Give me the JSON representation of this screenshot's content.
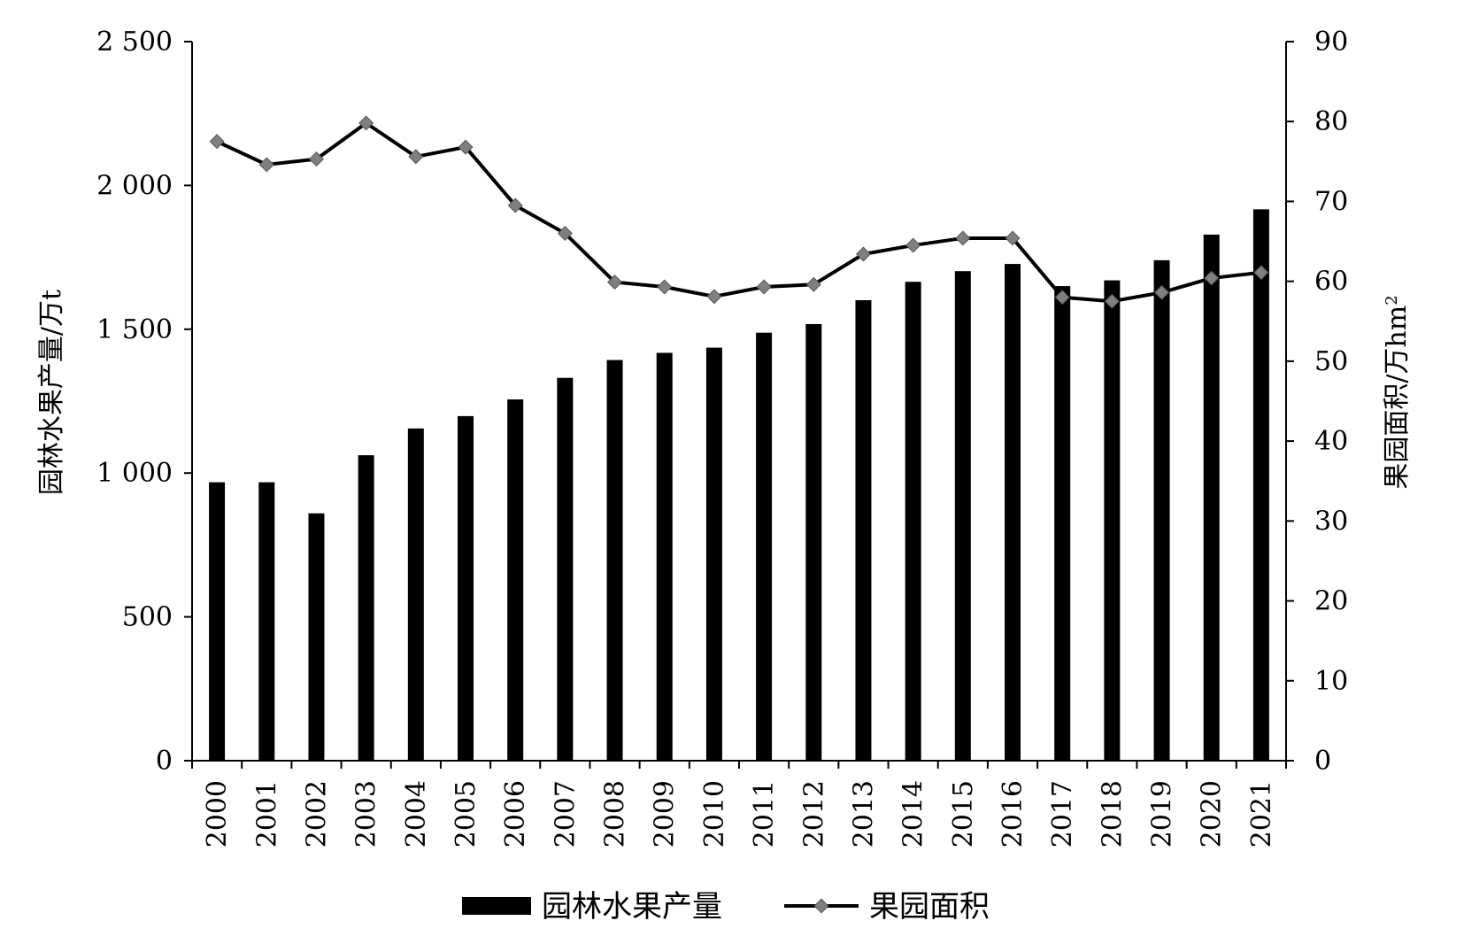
{
  "chart_data": {
    "type": "bar",
    "categories": [
      "2000",
      "2001",
      "2002",
      "2003",
      "2004",
      "2005",
      "2006",
      "2007",
      "2008",
      "2009",
      "2010",
      "2011",
      "2012",
      "2013",
      "2014",
      "2015",
      "2016",
      "2017",
      "2018",
      "2019",
      "2020",
      "2021"
    ],
    "series": [
      {
        "name": "园林水果产量",
        "type": "bar",
        "axis": "left",
        "color": "#000000",
        "values": [
          968,
          968,
          860,
          1062,
          1155,
          1198,
          1256,
          1331,
          1393,
          1418,
          1436,
          1488,
          1518,
          1601,
          1665,
          1702,
          1727,
          1650,
          1670,
          1740,
          1829,
          1917
        ]
      },
      {
        "name": "果园面积",
        "type": "line",
        "axis": "right",
        "color": "#000000",
        "marker": "diamond",
        "marker_color": "#7f7f7f",
        "values": [
          77.5,
          74.6,
          75.3,
          79.8,
          75.6,
          76.8,
          69.5,
          66.0,
          59.9,
          59.3,
          58.1,
          59.3,
          59.6,
          63.4,
          64.5,
          65.4,
          65.4,
          58.0,
          57.5,
          58.6,
          60.4,
          61.1
        ]
      }
    ],
    "y_left": {
      "label": "园林水果产量/万t",
      "ylim": [
        0,
        2500
      ],
      "ticks": [
        0,
        500,
        1000,
        1500,
        2000,
        2500
      ],
      "tick_labels": [
        "0",
        "500",
        "1 000",
        "1 500",
        "2 000",
        "2 500"
      ]
    },
    "y_right": {
      "label": "果园面积/万hm²",
      "ylim": [
        0,
        90
      ],
      "ticks": [
        0,
        10,
        20,
        30,
        40,
        50,
        60,
        70,
        80,
        90
      ],
      "tick_labels": [
        "0",
        "10",
        "20",
        "30",
        "40",
        "50",
        "60",
        "70",
        "80",
        "90"
      ]
    },
    "x_tick_rotation": -90,
    "grid": false,
    "legend": {
      "position": "bottom-center",
      "entries": [
        "园林水果产量",
        "果园面积"
      ]
    }
  }
}
